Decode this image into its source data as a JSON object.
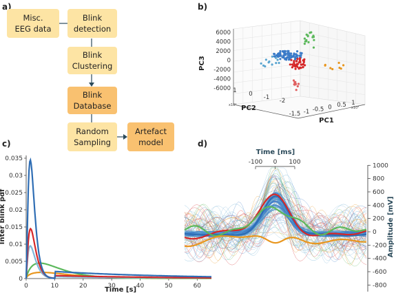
{
  "panels": {
    "a": "a)",
    "b": "b)",
    "c": "c)",
    "d": "d)"
  },
  "flowchart": {
    "nodes": [
      {
        "id": "eeg",
        "lines": [
          "Misc.",
          "EEG data"
        ]
      },
      {
        "id": "detect",
        "lines": [
          "Blink",
          "detection"
        ]
      },
      {
        "id": "cluster",
        "lines": [
          "Blink",
          "Clustering"
        ]
      },
      {
        "id": "db",
        "lines": [
          "Blink",
          "Database"
        ]
      },
      {
        "id": "sampling",
        "lines": [
          "Random",
          "Sampling"
        ]
      },
      {
        "id": "model",
        "lines": [
          "Artefact",
          "model"
        ]
      }
    ],
    "colors": {
      "light": "#fde4a4",
      "dark": "#f9c170",
      "arrow": "#2b4a5a"
    }
  },
  "scatter3d": {
    "z_label": "PC3",
    "y_label": "PC2",
    "x_label": "PC1",
    "z_ticks": [
      "6000",
      "4000",
      "2000",
      "0",
      "-2000",
      "-4000",
      "-6000"
    ],
    "y_ticks": [
      "1",
      "0",
      "-1",
      "-2"
    ],
    "x_ticks": [
      "-1.5",
      "-1",
      "-0.5",
      "0",
      "0.5",
      "1"
    ],
    "y_exp": "x10⁴",
    "x_exp": "x10⁴",
    "cluster_colors": [
      "#3a7bc8",
      "#5bb85b",
      "#d62728",
      "#e8961e",
      "#5aa5d0",
      "#e06060"
    ]
  },
  "pdf_chart": {
    "ylabel": "Inter blink pdf",
    "xlabel": "Time [s]",
    "y_ticks": [
      "0",
      "0.005",
      "0.01",
      "0.015",
      "0.02",
      "0.025",
      "0.03",
      "0.035"
    ],
    "x_ticks": [
      "0",
      "10",
      "20",
      "30",
      "40",
      "50",
      "60"
    ],
    "series_colors": [
      "#2e6db4",
      "#d62728",
      "#7fb6d9",
      "#5bb85b",
      "#e8961e"
    ]
  },
  "waveform_chart": {
    "top_label": "Time [ms]",
    "top_ticks": [
      "-100",
      "0",
      "100"
    ],
    "ylabel": "Amplitude [mV]",
    "y_ticks": [
      "1000",
      "800",
      "600",
      "400",
      "200",
      "0",
      "-200",
      "-400",
      "-600",
      "-800"
    ]
  }
}
